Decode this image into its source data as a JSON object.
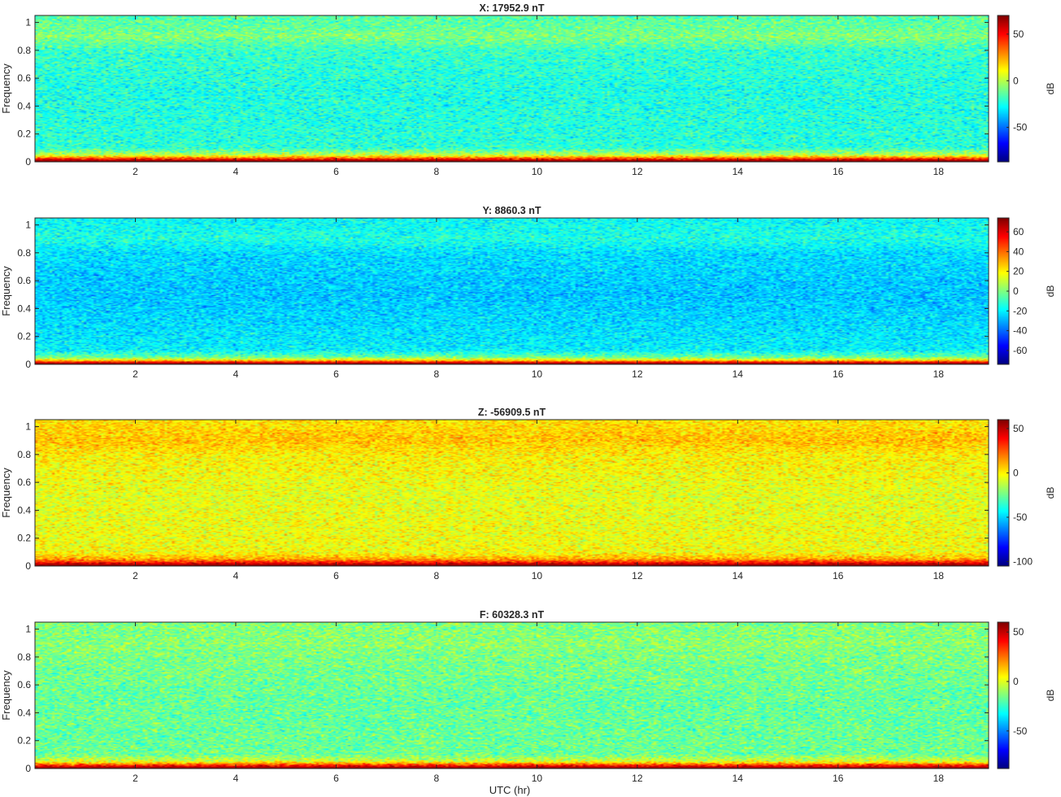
{
  "figure": {
    "xlabel": "UTC (hr)"
  },
  "chart_data": [
    {
      "type": "heatmap",
      "title": "X: 17952.9 nT",
      "xlabel": "",
      "ylabel": "Frequency",
      "xlim": [
        0,
        19
      ],
      "ylim": [
        0,
        1.05
      ],
      "xticks": [
        2,
        4,
        6,
        8,
        10,
        12,
        14,
        16,
        18
      ],
      "yticks": [
        0,
        0.2,
        0.4,
        0.6,
        0.8,
        1
      ],
      "colorbar": {
        "label": "dB",
        "range": [
          -87,
          70
        ],
        "ticks": [
          -50,
          0,
          50
        ]
      },
      "colormap": "jet",
      "bands": [
        {
          "f": 0.0,
          "db": 70
        },
        {
          "f": 0.012,
          "db": 62
        },
        {
          "f": 0.03,
          "db": 30
        },
        {
          "f": 0.05,
          "db": 2
        },
        {
          "f": 0.1,
          "db": -22
        },
        {
          "f": 0.5,
          "db": -24
        },
        {
          "f": 0.8,
          "db": -20
        },
        {
          "f": 0.9,
          "db": -8
        },
        {
          "f": 0.95,
          "db": -12
        },
        {
          "f": 1.05,
          "db": -15
        }
      ],
      "noise_db": 8
    },
    {
      "type": "heatmap",
      "title": "Y: 8860.3 nT",
      "xlabel": "",
      "ylabel": "Frequency",
      "xlim": [
        0,
        19
      ],
      "ylim": [
        0,
        1.05
      ],
      "xticks": [
        2,
        4,
        6,
        8,
        10,
        12,
        14,
        16,
        18
      ],
      "yticks": [
        0,
        0.2,
        0.4,
        0.6,
        0.8,
        1
      ],
      "colorbar": {
        "label": "dB",
        "range": [
          -74,
          74
        ],
        "ticks": [
          -60,
          -40,
          -20,
          0,
          20,
          40,
          60
        ]
      },
      "colormap": "jet",
      "bands": [
        {
          "f": 0.0,
          "db": 74
        },
        {
          "f": 0.012,
          "db": 62
        },
        {
          "f": 0.03,
          "db": 22
        },
        {
          "f": 0.05,
          "db": -2
        },
        {
          "f": 0.1,
          "db": -20
        },
        {
          "f": 0.5,
          "db": -27
        },
        {
          "f": 0.8,
          "db": -23
        },
        {
          "f": 0.9,
          "db": -14
        },
        {
          "f": 0.95,
          "db": -16
        },
        {
          "f": 1.05,
          "db": -18
        }
      ],
      "noise_db": 7
    },
    {
      "type": "heatmap",
      "title": "Z: -56909.5 nT",
      "xlabel": "",
      "ylabel": "Frequency",
      "xlim": [
        0,
        19
      ],
      "ylim": [
        0,
        1.05
      ],
      "xticks": [
        2,
        4,
        6,
        8,
        10,
        12,
        14,
        16,
        18
      ],
      "yticks": [
        0,
        0.2,
        0.4,
        0.6,
        0.8,
        1
      ],
      "colorbar": {
        "label": "dB",
        "range": [
          -105,
          60
        ],
        "ticks": [
          -100,
          -50,
          0,
          50
        ]
      },
      "colormap": "jet",
      "bands": [
        {
          "f": 0.0,
          "db": 60
        },
        {
          "f": 0.012,
          "db": 52
        },
        {
          "f": 0.03,
          "db": 32
        },
        {
          "f": 0.05,
          "db": 12
        },
        {
          "f": 0.1,
          "db": -3
        },
        {
          "f": 0.5,
          "db": -6
        },
        {
          "f": 0.8,
          "db": 0
        },
        {
          "f": 0.9,
          "db": 8
        },
        {
          "f": 0.95,
          "db": 6
        },
        {
          "f": 1.05,
          "db": 2
        }
      ],
      "noise_db": 8
    },
    {
      "type": "heatmap",
      "title": "F: 60328.3 nT",
      "xlabel": "UTC (hr)",
      "ylabel": "Frequency",
      "xlim": [
        0,
        19
      ],
      "ylim": [
        0,
        1.05
      ],
      "xticks": [
        2,
        4,
        6,
        8,
        10,
        12,
        14,
        16,
        18
      ],
      "yticks": [
        0,
        0.2,
        0.4,
        0.6,
        0.8,
        1
      ],
      "colorbar": {
        "label": "dB",
        "range": [
          -88,
          60
        ],
        "ticks": [
          -50,
          0,
          50
        ]
      },
      "colormap": "jet",
      "bands": [
        {
          "f": 0.0,
          "db": 58
        },
        {
          "f": 0.012,
          "db": 50
        },
        {
          "f": 0.03,
          "db": 28
        },
        {
          "f": 0.05,
          "db": 0
        },
        {
          "f": 0.1,
          "db": -17
        },
        {
          "f": 0.5,
          "db": -18
        },
        {
          "f": 0.8,
          "db": -15
        },
        {
          "f": 0.9,
          "db": -12
        },
        {
          "f": 0.95,
          "db": -13
        },
        {
          "f": 1.05,
          "db": -14
        }
      ],
      "noise_db": 8
    }
  ]
}
